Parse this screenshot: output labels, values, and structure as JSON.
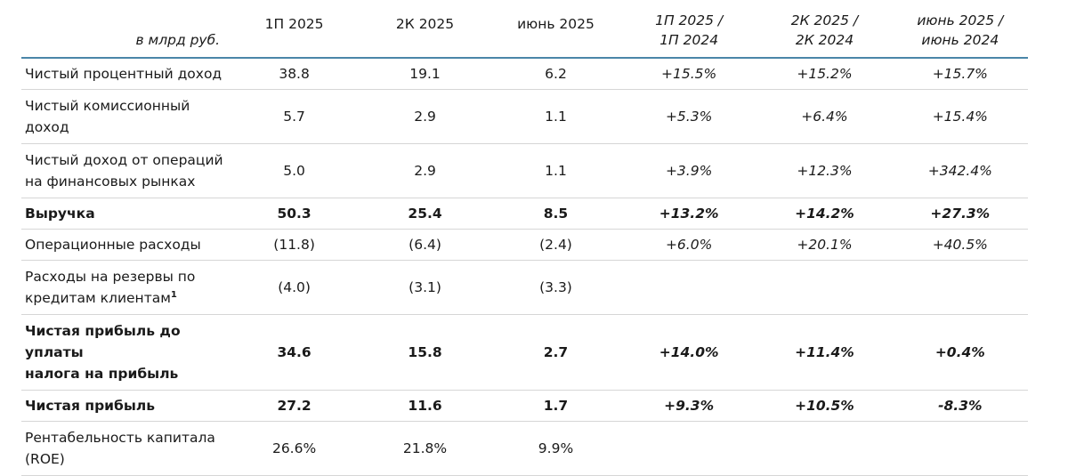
{
  "header": {
    "unit_label": "в млрд руб.",
    "columns": [
      "1П 2025",
      "2К 2025",
      "июнь 2025"
    ],
    "pct_columns": [
      {
        "line1": "1П 2025 /",
        "line2": "1П 2024"
      },
      {
        "line1": "2К 2025 /",
        "line2": "2К 2024"
      },
      {
        "line1": "июнь 2025 /",
        "line2": "июнь 2024"
      }
    ]
  },
  "rows": [
    {
      "label_line1": "Чистый процентный доход",
      "label_line2": "",
      "values": [
        "38.8",
        "19.1",
        "6.2"
      ],
      "changes": [
        "+15.5%",
        "+15.2%",
        "+15.7%"
      ]
    },
    {
      "label_line1": "Чистый комиссионный",
      "label_line2": "доход",
      "values": [
        "5.7",
        "2.9",
        "1.1"
      ],
      "changes": [
        "+5.3%",
        "+6.4%",
        "+15.4%"
      ]
    },
    {
      "label_line1": "Чистый доход от операций",
      "label_line2": "на финансовых рынках",
      "values": [
        "5.0",
        "2.9",
        "1.1"
      ],
      "changes": [
        "+3.9%",
        "+12.3%",
        "+342.4%"
      ]
    },
    {
      "label_line1": "Выручка",
      "label_line2": "",
      "values": [
        "50.3",
        "25.4",
        "8.5"
      ],
      "changes": [
        "+13.2%",
        "+14.2%",
        "+27.3%"
      ]
    },
    {
      "label_line1": "Операционные расходы",
      "label_line2": "",
      "values": [
        "(11.8)",
        "(6.4)",
        "(2.4)"
      ],
      "changes": [
        "+6.0%",
        "+20.1%",
        "+40.5%"
      ]
    },
    {
      "label_line1": "Расходы на резервы по",
      "label_line2": "кредитам клиентам",
      "footnote": "1",
      "values": [
        "(4.0)",
        "(3.1)",
        "(3.3)"
      ],
      "changes": [
        "",
        "",
        ""
      ]
    },
    {
      "label_line1": "Чистая прибыль до уплаты",
      "label_line2": "налога на прибыль",
      "values": [
        "34.6",
        "15.8",
        "2.7"
      ],
      "changes": [
        "+14.0%",
        "+11.4%",
        "+0.4%"
      ]
    },
    {
      "label_line1": "Чистая прибыль",
      "label_line2": "",
      "values": [
        "27.2",
        "11.6",
        "1.7"
      ],
      "changes": [
        "+9.3%",
        "+10.5%",
        "-8.3%"
      ]
    },
    {
      "label_line1": "Рентабельность капитала",
      "label_line2": "(ROE)",
      "values": [
        "26.6%",
        "21.8%",
        "9.9%"
      ],
      "changes": [
        "",
        "",
        ""
      ]
    }
  ],
  "colors": {
    "header_rule": "#4a86a8",
    "row_rule": "#d6d6d6",
    "text": "#1a1a1a"
  }
}
